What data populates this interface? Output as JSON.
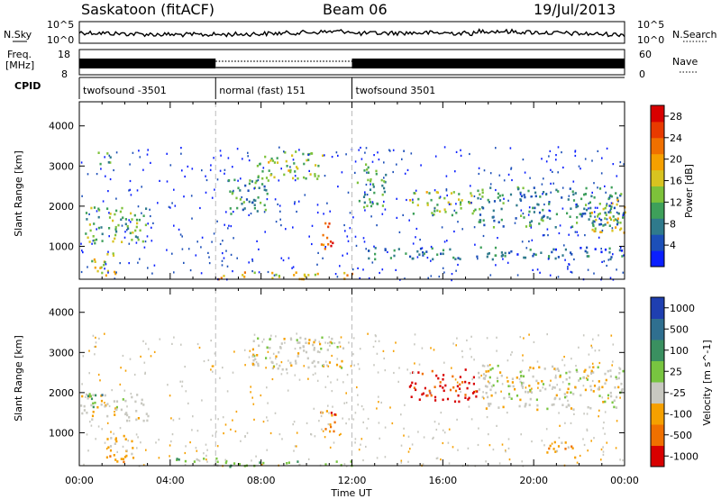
{
  "header": {
    "site": "Saskatoon (fitACF)",
    "beam": "Beam 06",
    "date": "19/Jul/2013"
  },
  "noise_panel": {
    "left_label": "N.Sky",
    "right_label": "N.Search",
    "left_ticks": [
      "10^5",
      "10^0"
    ],
    "right_ticks": [
      "10^5",
      "10^0"
    ]
  },
  "freq_panel": {
    "left_label_1": "Freq.",
    "left_label_2": "[MHz]",
    "left_ticks": [
      "18",
      "8"
    ],
    "right_label": "Nave",
    "right_ticks": [
      "60",
      "0"
    ]
  },
  "cpid": {
    "label": "CPID",
    "segments": [
      {
        "name": "twofsound -3501",
        "start_hour": 0,
        "end_hour": 6
      },
      {
        "name": "normal (fast) 151",
        "start_hour": 6,
        "end_hour": 12
      },
      {
        "name": "twofsound 3501",
        "start_hour": 12,
        "end_hour": 24
      }
    ]
  },
  "chart_data": [
    {
      "type": "heatmap",
      "title": "",
      "xlabel": "Time UT",
      "ylabel": "Slant Range [km]",
      "xlim": [
        "00:00",
        "24:00"
      ],
      "x_ticks": [
        "00:00",
        "04:00",
        "08:00",
        "12:00",
        "16:00",
        "20:00",
        "00:00"
      ],
      "ylim": [
        180,
        4600
      ],
      "y_ticks": [
        1000,
        2000,
        3000,
        4000
      ],
      "colorbar": {
        "label": "Power [dB]",
        "ticks": [
          4,
          8,
          12,
          16,
          20,
          24,
          28
        ],
        "range": [
          0,
          30
        ],
        "colors": [
          "#0a1fff",
          "#1c4fb8",
          "#2f7a8c",
          "#3ea05a",
          "#7dc23a",
          "#d8c320",
          "#f5a000",
          "#f07000",
          "#e83a00",
          "#d80000"
        ]
      },
      "regions": [
        {
          "t0": 0.2,
          "t1": 3.0,
          "r0": 1100,
          "r1": 2000,
          "level": 12
        },
        {
          "t0": 0.5,
          "t1": 1.7,
          "r0": 300,
          "r1": 900,
          "level": 16
        },
        {
          "t0": 0.8,
          "t1": 1.4,
          "r0": 3000,
          "r1": 3400,
          "level": 10
        },
        {
          "t0": 6.5,
          "t1": 8.3,
          "r0": 1700,
          "r1": 2700,
          "level": 8
        },
        {
          "t0": 7.8,
          "t1": 10.8,
          "r0": 2700,
          "r1": 3400,
          "level": 14
        },
        {
          "t0": 10.5,
          "t1": 11.2,
          "r0": 950,
          "r1": 1650,
          "level": 26
        },
        {
          "t0": 6.0,
          "t1": 12.0,
          "r0": 200,
          "r1": 380,
          "level": 18
        },
        {
          "t0": 12.2,
          "t1": 13.5,
          "r0": 2000,
          "r1": 3100,
          "level": 10
        },
        {
          "t0": 14.5,
          "t1": 17.5,
          "r0": 1800,
          "r1": 2400,
          "level": 14
        },
        {
          "t0": 17.5,
          "t1": 24.0,
          "r0": 1500,
          "r1": 2500,
          "level": 8
        },
        {
          "t0": 12.5,
          "t1": 24.0,
          "r0": 700,
          "r1": 1000,
          "level": 6
        },
        {
          "t0": 22.5,
          "t1": 24.0,
          "r0": 1300,
          "r1": 2200,
          "level": 16
        }
      ]
    },
    {
      "type": "heatmap",
      "title": "",
      "xlabel": "Time UT",
      "ylabel": "Slant Range [km]",
      "xlim": [
        "00:00",
        "24:00"
      ],
      "x_ticks": [
        "00:00",
        "04:00",
        "08:00",
        "12:00",
        "16:00",
        "20:00",
        "00:00"
      ],
      "ylim": [
        180,
        4600
      ],
      "y_ticks": [
        1000,
        2000,
        3000,
        4000
      ],
      "colorbar": {
        "label": "Velocity [m s^-1]",
        "ticks": [
          "1000",
          "500",
          "100",
          "25",
          "-25",
          "-100",
          "-500",
          "-1000"
        ],
        "colors": [
          "#1f3fb0",
          "#2f6f8f",
          "#3a9060",
          "#78c540",
          "#c8c8c0",
          "#f5a000",
          "#f07000",
          "#d80000"
        ]
      },
      "regions": [
        {
          "t0": 0.0,
          "t1": 3.0,
          "r0": 1300,
          "r1": 2000,
          "level": "-25"
        },
        {
          "t0": 0.3,
          "t1": 1.0,
          "r0": 1600,
          "r1": 2000,
          "level": "100"
        },
        {
          "t0": 1.0,
          "t1": 2.5,
          "r0": 300,
          "r1": 1000,
          "level": "-100"
        },
        {
          "t0": 4.0,
          "t1": 6.5,
          "r0": 300,
          "r1": 450,
          "level": "25"
        },
        {
          "t0": 6.0,
          "t1": 12.0,
          "r0": 180,
          "r1": 320,
          "level": "25"
        },
        {
          "t0": 7.5,
          "t1": 11.8,
          "r0": 2600,
          "r1": 3400,
          "level": "-25"
        },
        {
          "t0": 10.5,
          "t1": 11.3,
          "r0": 950,
          "r1": 1600,
          "level": "-500"
        },
        {
          "t0": 14.5,
          "t1": 17.5,
          "r0": 1800,
          "r1": 2600,
          "level": "-1000"
        },
        {
          "t0": 17.5,
          "t1": 24.0,
          "r0": 1600,
          "r1": 2700,
          "level": "-25"
        },
        {
          "t0": 20.5,
          "t1": 22.0,
          "r0": 400,
          "r1": 800,
          "level": "-100"
        }
      ]
    }
  ]
}
